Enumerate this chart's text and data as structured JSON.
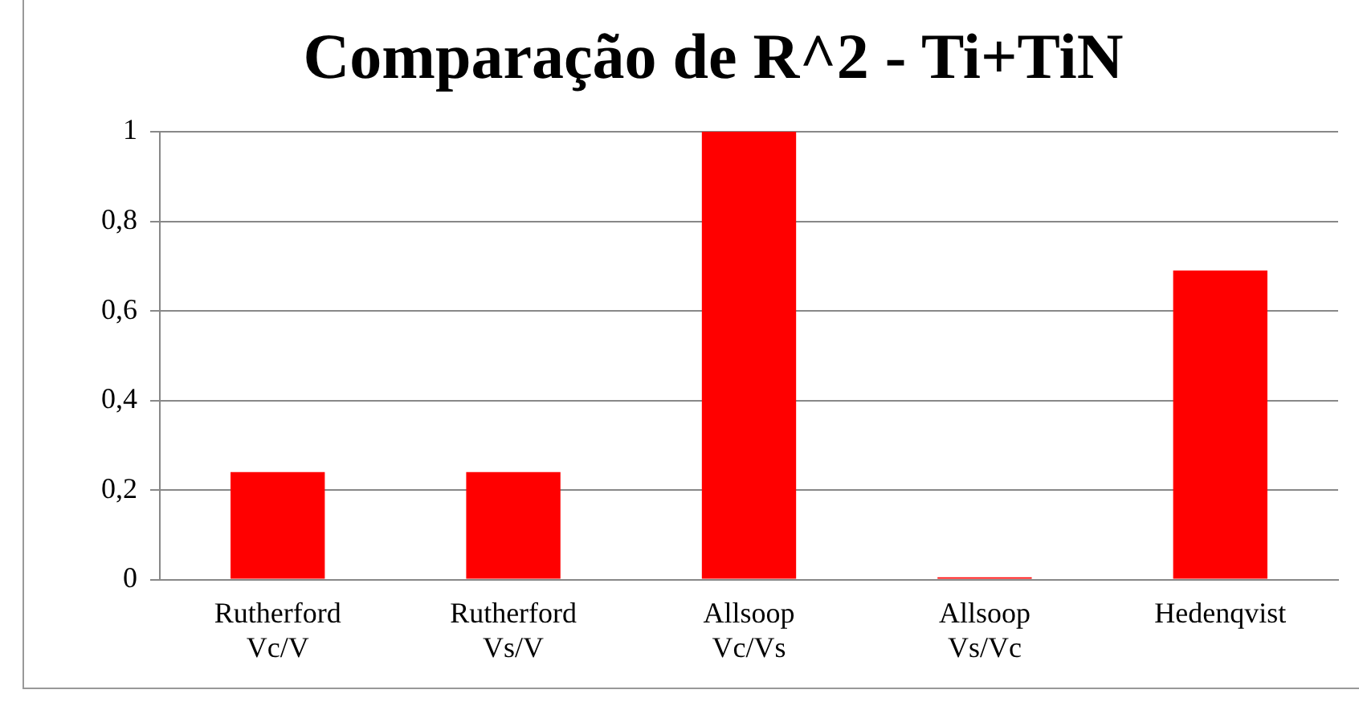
{
  "chart_data": {
    "type": "bar",
    "title": "Comparação de R^2 - Ti+TiN",
    "categories": [
      "Rutherford Vc/V",
      "Rutherford Vs/V",
      "Allsoop Vc/Vs",
      "Allsoop Vs/Vc",
      "Hedenqvist"
    ],
    "values": [
      0.24,
      0.24,
      1,
      0.005,
      0.69
    ],
    "color": "#ff0000",
    "ylim": [
      0,
      1
    ],
    "yticks": [
      {
        "value": 0,
        "label": "0"
      },
      {
        "value": 0.2,
        "label": "0,2"
      },
      {
        "value": 0.4,
        "label": "0,4"
      },
      {
        "value": 0.6,
        "label": "0,6"
      },
      {
        "value": 0.8,
        "label": "0,8"
      },
      {
        "value": 1,
        "label": "1"
      }
    ],
    "grid": "y",
    "legend": false
  }
}
